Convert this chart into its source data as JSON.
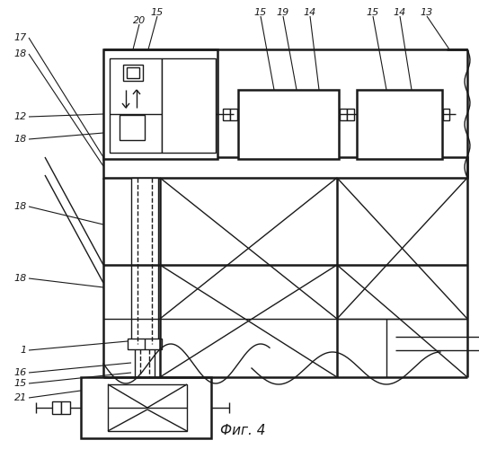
{
  "bg_color": "#ffffff",
  "lc": "#1a1a1a",
  "caption": "Фиг. 4",
  "lw": 1.0,
  "lwt": 1.8
}
